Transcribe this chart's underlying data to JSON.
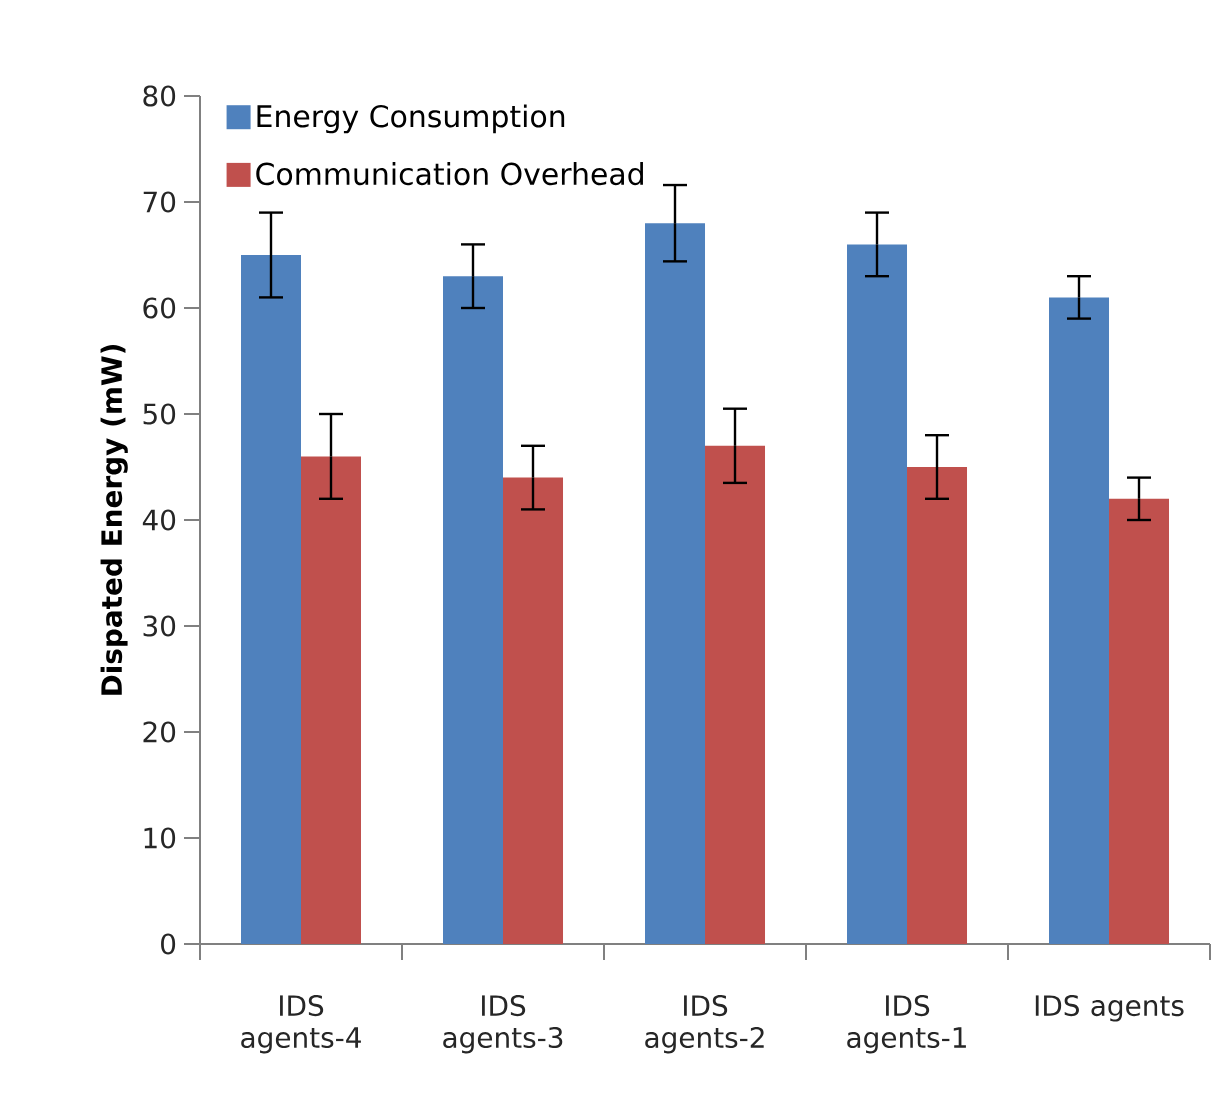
{
  "chart_data": {
    "type": "bar",
    "ylabel": "Dispated Energy (mW)",
    "categories": [
      "IDS agents-4",
      "IDS agents-3",
      "IDS agents-2",
      "IDS agents-1",
      "IDS agents"
    ],
    "series": [
      {
        "name": "Energy Consumption",
        "color": "#4f81bd",
        "values": [
          65,
          63,
          68,
          66,
          61
        ],
        "errors": [
          4,
          3,
          3.6,
          3,
          2
        ]
      },
      {
        "name": "Communication Overhead",
        "color": "#c0504d",
        "values": [
          46,
          44,
          47,
          45,
          42
        ],
        "errors": [
          4,
          3,
          3.5,
          3,
          2
        ]
      }
    ],
    "ylim": [
      0,
      80
    ],
    "yticks": [
      0,
      10,
      20,
      30,
      40,
      50,
      60,
      70,
      80
    ],
    "legend": "top left"
  }
}
